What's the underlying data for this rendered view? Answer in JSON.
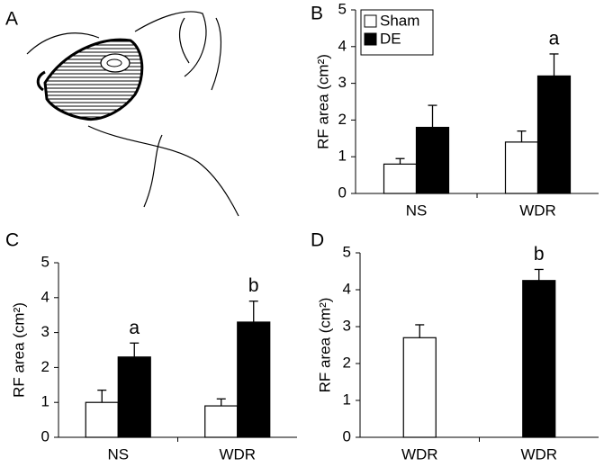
{
  "figure_a": {
    "panel": "A"
  },
  "chart_data": [
    {
      "type": "bar",
      "panel": "B",
      "ylabel": "RF area (cm²)",
      "categories": [
        "NS",
        "WDR"
      ],
      "ylim": [
        0,
        5
      ],
      "yticks": [
        0,
        1,
        2,
        3,
        4,
        5
      ],
      "legend": "upper left",
      "series": [
        {
          "name": "Sham",
          "color": "#ffffff",
          "values": [
            0.8,
            1.4
          ],
          "errors": [
            0.15,
            0.3
          ],
          "labels": [
            null,
            null
          ]
        },
        {
          "name": "DE",
          "color": "#000000",
          "values": [
            1.8,
            3.2
          ],
          "errors": [
            0.6,
            0.6
          ],
          "labels": [
            null,
            "a"
          ]
        }
      ]
    },
    {
      "type": "bar",
      "panel": "C",
      "ylabel": "RF area (cm²)",
      "categories": [
        "NS",
        "WDR"
      ],
      "ylim": [
        0,
        5
      ],
      "yticks": [
        0,
        1,
        2,
        3,
        4,
        5
      ],
      "series": [
        {
          "color": "#ffffff",
          "values": [
            1.0,
            0.9
          ],
          "errors": [
            0.35,
            0.2
          ],
          "labels": [
            null,
            null
          ]
        },
        {
          "color": "#000000",
          "values": [
            2.3,
            3.3
          ],
          "errors": [
            0.4,
            0.6
          ],
          "labels": [
            "a",
            "b"
          ]
        }
      ]
    },
    {
      "type": "bar",
      "panel": "D",
      "ylabel": "RF area (cm²)",
      "categories": [
        "WDR",
        "WDR"
      ],
      "ylim": [
        0,
        5
      ],
      "yticks": [
        0,
        1,
        2,
        3,
        4,
        5
      ],
      "values": [
        2.7,
        4.25
      ],
      "errors": [
        0.35,
        0.3
      ],
      "colors": [
        "#ffffff",
        "#000000"
      ],
      "labels": [
        null,
        "b"
      ]
    }
  ]
}
